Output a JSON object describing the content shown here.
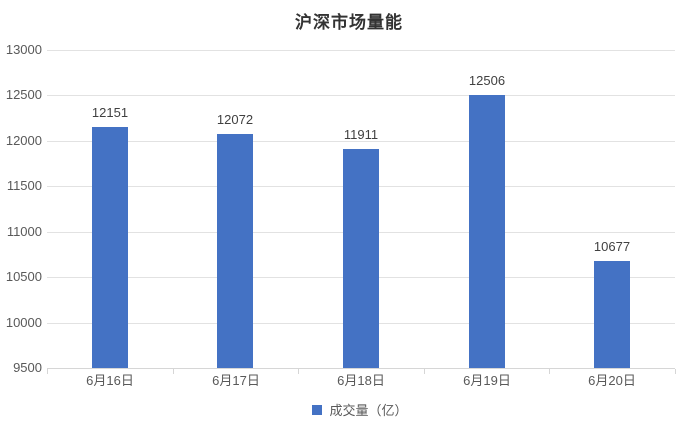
{
  "title": "沪深市场量能",
  "legend": {
    "label": "成交量（亿）"
  },
  "colors": {
    "bar": "#4472c4",
    "gridline": "#e2e2e2",
    "axis_line": "#d6d6d6",
    "tick_text": "#595959",
    "value_label_text": "#404040",
    "title_text": "#333333"
  },
  "chart_data": {
    "type": "bar",
    "title": "沪深市场量能",
    "categories": [
      "6月16日",
      "6月17日",
      "6月18日",
      "6月19日",
      "6月20日"
    ],
    "series": [
      {
        "name": "成交量（亿）",
        "values": [
          12151,
          12072,
          11911,
          12506,
          10677
        ]
      }
    ],
    "data_labels": [
      "12151",
      "12072",
      "11911",
      "12506",
      "10677"
    ],
    "xlabel": "",
    "ylabel": "",
    "ylim": [
      9500,
      13000
    ],
    "yticks": [
      9500,
      10000,
      10500,
      11000,
      11500,
      12000,
      12500,
      13000
    ],
    "grid": true,
    "legend_position": "bottom"
  }
}
